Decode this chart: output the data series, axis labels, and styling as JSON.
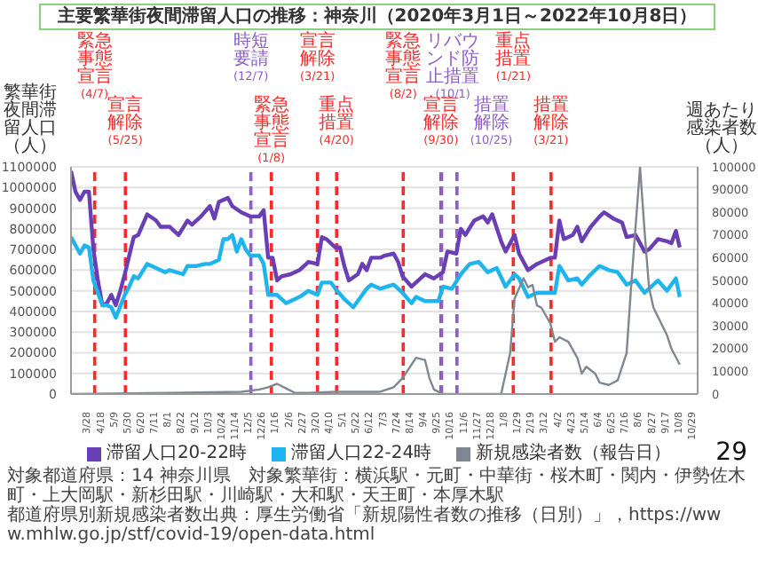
{
  "chart_data": {
    "type": "line",
    "title": "主要繁華街夜間滞留人口の推移：神奈川（2020年3月1日～2022年10月8日）",
    "ylabel": "繁華街夜間滞留人口（人）",
    "y2label": "週あたり感染者数（人）",
    "xlim": [
      "2020-03-01",
      "2022-11-05"
    ],
    "xticks": [
      {
        "value": "2020-03-28",
        "label": "3/28"
      },
      {
        "value": "2020-04-18",
        "label": "4/18"
      },
      {
        "value": "2020-05-09",
        "label": "5/9"
      },
      {
        "value": "2020-05-30",
        "label": "5/30"
      },
      {
        "value": "2020-06-20",
        "label": "6/20"
      },
      {
        "value": "2020-07-11",
        "label": "7/11"
      },
      {
        "value": "2020-08-01",
        "label": "8/1"
      },
      {
        "value": "2020-08-22",
        "label": "8/22"
      },
      {
        "value": "2020-09-12",
        "label": "9/12"
      },
      {
        "value": "2020-10-03",
        "label": "10/3"
      },
      {
        "value": "2020-10-24",
        "label": "10/24"
      },
      {
        "value": "2020-11-14",
        "label": "11/14"
      },
      {
        "value": "2020-12-05",
        "label": "12/5"
      },
      {
        "value": "2020-12-26",
        "label": "12/26"
      },
      {
        "value": "2021-01-16",
        "label": "1/16"
      },
      {
        "value": "2021-02-06",
        "label": "2/6"
      },
      {
        "value": "2021-02-27",
        "label": "2/27"
      },
      {
        "value": "2021-03-20",
        "label": "3/20"
      },
      {
        "value": "2021-04-10",
        "label": "4/10"
      },
      {
        "value": "2021-05-01",
        "label": "5/1"
      },
      {
        "value": "2021-05-22",
        "label": "5/22"
      },
      {
        "value": "2021-06-12",
        "label": "6/12"
      },
      {
        "value": "2021-07-03",
        "label": "7/3"
      },
      {
        "value": "2021-07-24",
        "label": "7/24"
      },
      {
        "value": "2021-08-14",
        "label": "8/14"
      },
      {
        "value": "2021-09-04",
        "label": "9/4"
      },
      {
        "value": "2021-09-25",
        "label": "9/25"
      },
      {
        "value": "2021-10-16",
        "label": "10/16"
      },
      {
        "value": "2021-11-06",
        "label": "11/6"
      },
      {
        "value": "2021-11-27",
        "label": "11/27"
      },
      {
        "value": "2021-12-18",
        "label": "12/18"
      },
      {
        "value": "2022-01-08",
        "label": "1/8"
      },
      {
        "value": "2022-01-29",
        "label": "1/29"
      },
      {
        "value": "2022-02-19",
        "label": "2/19"
      },
      {
        "value": "2022-03-12",
        "label": "3/12"
      },
      {
        "value": "2022-04-02",
        "label": "4/2"
      },
      {
        "value": "2022-04-23",
        "label": "4/23"
      },
      {
        "value": "2022-05-14",
        "label": "5/14"
      },
      {
        "value": "2022-06-04",
        "label": "6/4"
      },
      {
        "value": "2022-06-25",
        "label": "6/25"
      },
      {
        "value": "2022-07-16",
        "label": "7/16"
      },
      {
        "value": "2022-08-06",
        "label": "8/6"
      },
      {
        "value": "2022-08-27",
        "label": "8/27"
      },
      {
        "value": "2022-09-17",
        "label": "9/17"
      },
      {
        "value": "2022-10-08",
        "label": "10/8"
      },
      {
        "value": "2022-10-29",
        "label": "10/29"
      }
    ],
    "ylim": [
      0,
      1100000
    ],
    "yticks": [
      0,
      100000,
      200000,
      300000,
      400000,
      500000,
      600000,
      700000,
      800000,
      900000,
      1000000,
      1100000
    ],
    "y2lim": [
      0,
      100000
    ],
    "y2ticks": [
      0,
      10000,
      20000,
      30000,
      40000,
      50000,
      60000,
      70000,
      80000,
      90000,
      100000
    ],
    "grid": true,
    "legend": "bottom",
    "series": [
      {
        "name": "滞留人口20-22時",
        "color": "#6a3fb6",
        "x": [
          "2020-03-01",
          "2020-03-08",
          "2020-03-15",
          "2020-03-22",
          "2020-03-29",
          "2020-04-05",
          "2020-04-12",
          "2020-04-19",
          "2020-04-26",
          "2020-05-03",
          "2020-05-10",
          "2020-05-17",
          "2020-05-24",
          "2020-06-07",
          "2020-06-14",
          "2020-06-28",
          "2020-07-12",
          "2020-07-19",
          "2020-08-02",
          "2020-08-16",
          "2020-08-30",
          "2020-09-06",
          "2020-09-20",
          "2020-10-04",
          "2020-10-11",
          "2020-10-18",
          "2020-11-01",
          "2020-11-08",
          "2020-11-22",
          "2020-11-29",
          "2020-12-06",
          "2020-12-20",
          "2020-12-27",
          "2021-01-03",
          "2021-01-10",
          "2021-01-17",
          "2021-01-24",
          "2021-02-07",
          "2021-02-21",
          "2021-03-07",
          "2021-03-21",
          "2021-03-28",
          "2021-04-04",
          "2021-04-18",
          "2021-04-25",
          "2021-05-02",
          "2021-05-09",
          "2021-05-23",
          "2021-05-30",
          "2021-06-06",
          "2021-06-13",
          "2021-06-27",
          "2021-07-04",
          "2021-07-18",
          "2021-07-25",
          "2021-08-01",
          "2021-08-15",
          "2021-09-05",
          "2021-09-19",
          "2021-10-03",
          "2021-10-10",
          "2021-10-24",
          "2021-10-31",
          "2021-11-07",
          "2021-11-21",
          "2021-12-05",
          "2021-12-12",
          "2021-12-19",
          "2022-01-02",
          "2022-01-09",
          "2022-01-23",
          "2022-01-30",
          "2022-02-13",
          "2022-02-27",
          "2022-03-20",
          "2022-03-27",
          "2022-04-03",
          "2022-04-10",
          "2022-04-24",
          "2022-05-01",
          "2022-05-08",
          "2022-05-22",
          "2022-06-05",
          "2022-06-12",
          "2022-06-26",
          "2022-07-10",
          "2022-07-17",
          "2022-07-31",
          "2022-08-14",
          "2022-08-21",
          "2022-09-04",
          "2022-09-18",
          "2022-09-25",
          "2022-10-02",
          "2022-10-08"
        ],
        "values": [
          1080000,
          980000,
          940000,
          980000,
          980000,
          700000,
          550000,
          430000,
          440000,
          480000,
          430000,
          500000,
          580000,
          760000,
          770000,
          870000,
          840000,
          810000,
          810000,
          770000,
          840000,
          820000,
          860000,
          910000,
          850000,
          930000,
          950000,
          910000,
          880000,
          870000,
          860000,
          860000,
          890000,
          660000,
          660000,
          550000,
          570000,
          580000,
          600000,
          640000,
          630000,
          760000,
          750000,
          710000,
          710000,
          620000,
          550000,
          580000,
          630000,
          600000,
          660000,
          660000,
          670000,
          680000,
          640000,
          570000,
          520000,
          580000,
          560000,
          590000,
          690000,
          680000,
          800000,
          770000,
          840000,
          860000,
          830000,
          870000,
          740000,
          690000,
          770000,
          680000,
          600000,
          630000,
          660000,
          660000,
          840000,
          750000,
          770000,
          810000,
          740000,
          810000,
          860000,
          880000,
          850000,
          830000,
          760000,
          770000,
          690000,
          700000,
          750000,
          740000,
          730000,
          790000,
          710000
        ]
      },
      {
        "name": "滞留人口22-24時",
        "color": "#1eb4ee",
        "x": [
          "2020-03-01",
          "2020-03-15",
          "2020-03-22",
          "2020-03-29",
          "2020-04-05",
          "2020-04-19",
          "2020-04-26",
          "2020-05-03",
          "2020-05-10",
          "2020-05-24",
          "2020-05-31",
          "2020-06-07",
          "2020-06-14",
          "2020-06-28",
          "2020-07-12",
          "2020-07-26",
          "2020-08-02",
          "2020-08-23",
          "2020-08-30",
          "2020-09-13",
          "2020-09-27",
          "2020-10-04",
          "2020-10-18",
          "2020-10-25",
          "2020-11-01",
          "2020-11-08",
          "2020-11-15",
          "2020-11-22",
          "2020-11-29",
          "2020-12-06",
          "2020-12-20",
          "2020-12-27",
          "2021-01-03",
          "2021-01-17",
          "2021-01-31",
          "2021-02-14",
          "2021-02-21",
          "2021-03-07",
          "2021-03-21",
          "2021-03-28",
          "2021-04-11",
          "2021-04-18",
          "2021-05-02",
          "2021-05-16",
          "2021-05-23",
          "2021-06-06",
          "2021-06-13",
          "2021-06-27",
          "2021-07-18",
          "2021-08-01",
          "2021-08-15",
          "2021-08-22",
          "2021-09-05",
          "2021-09-26",
          "2021-10-03",
          "2021-10-17",
          "2021-10-31",
          "2021-11-14",
          "2021-11-28",
          "2021-12-12",
          "2021-12-26",
          "2022-01-09",
          "2022-01-23",
          "2022-01-30",
          "2022-02-13",
          "2022-02-27",
          "2022-03-20",
          "2022-03-27",
          "2022-04-03",
          "2022-04-17",
          "2022-05-01",
          "2022-05-08",
          "2022-05-22",
          "2022-06-05",
          "2022-06-19",
          "2022-07-03",
          "2022-07-17",
          "2022-07-31",
          "2022-08-14",
          "2022-09-04",
          "2022-09-18",
          "2022-10-02",
          "2022-10-08"
        ],
        "values": [
          760000,
          680000,
          720000,
          710000,
          550000,
          430000,
          430000,
          420000,
          370000,
          480000,
          520000,
          570000,
          560000,
          630000,
          610000,
          590000,
          600000,
          580000,
          620000,
          620000,
          630000,
          630000,
          650000,
          750000,
          750000,
          770000,
          690000,
          750000,
          700000,
          670000,
          670000,
          630000,
          480000,
          480000,
          440000,
          460000,
          470000,
          500000,
          480000,
          540000,
          540000,
          510000,
          460000,
          420000,
          450000,
          510000,
          530000,
          510000,
          530000,
          490000,
          440000,
          470000,
          450000,
          450000,
          520000,
          510000,
          580000,
          630000,
          640000,
          590000,
          610000,
          520000,
          580000,
          560000,
          470000,
          490000,
          490000,
          490000,
          620000,
          550000,
          560000,
          530000,
          580000,
          620000,
          600000,
          590000,
          530000,
          550000,
          490000,
          550000,
          500000,
          560000,
          470000
        ]
      },
      {
        "name": "新規感染者数（報告日）",
        "color": "#7f8892",
        "axis": "y2",
        "x": [
          "2020-03-01",
          "2020-08-02",
          "2020-11-22",
          "2020-12-20",
          "2021-01-03",
          "2021-01-17",
          "2021-01-31",
          "2021-02-14",
          "2021-03-07",
          "2021-04-18",
          "2021-05-23",
          "2021-06-27",
          "2021-07-18",
          "2021-08-01",
          "2021-08-15",
          "2021-08-22",
          "2021-09-05",
          "2021-09-12",
          "2021-09-19",
          "2021-10-03",
          "2022-01-02",
          "2022-01-16",
          "2022-01-23",
          "2022-02-06",
          "2022-02-13",
          "2022-02-20",
          "2022-02-27",
          "2022-03-06",
          "2022-03-20",
          "2022-03-27",
          "2022-04-03",
          "2022-04-17",
          "2022-05-01",
          "2022-05-08",
          "2022-05-15",
          "2022-05-29",
          "2022-06-05",
          "2022-06-19",
          "2022-07-03",
          "2022-07-17",
          "2022-07-24",
          "2022-08-07",
          "2022-08-14",
          "2022-08-21",
          "2022-08-28",
          "2022-09-04",
          "2022-09-18",
          "2022-09-25",
          "2022-10-08"
        ],
        "values": [
          0,
          500,
          1000,
          2000,
          3000,
          4500,
          2500,
          500,
          500,
          1000,
          1000,
          1000,
          3000,
          7000,
          13000,
          16000,
          15000,
          7000,
          2000,
          0,
          0,
          18000,
          42000,
          51000,
          47000,
          48000,
          39000,
          38000,
          31000,
          23000,
          25000,
          23000,
          16000,
          9000,
          12000,
          9000,
          5000,
          4000,
          6000,
          18000,
          47000,
          100000,
          72000,
          47000,
          38000,
          34000,
          26000,
          20000,
          13000
        ]
      }
    ],
    "ref_lines": [
      {
        "axis": "x",
        "value": "2020-04-07",
        "label": "緊急事態宣言(4/7)",
        "color": "#ff2a2a",
        "line_style": "dashed"
      },
      {
        "axis": "x",
        "value": "2020-05-25",
        "label": "宣言解除(5/25)",
        "color": "#ff2a2a",
        "line_style": "dashed"
      },
      {
        "axis": "x",
        "value": "2020-12-07",
        "label": "時短要請(12/7)",
        "color": "#8f5fc9",
        "line_style": "dashed"
      },
      {
        "axis": "x",
        "value": "2021-01-08",
        "label": "緊急事態宣言(1/8)",
        "color": "#ff2a2a",
        "line_style": "dashed"
      },
      {
        "axis": "x",
        "value": "2021-03-21",
        "label": "宣言解除(3/21)",
        "color": "#ff2a2a",
        "line_style": "dashed"
      },
      {
        "axis": "x",
        "value": "2021-04-20",
        "label": "重点措置(4/20)",
        "color": "#ff2a2a",
        "line_style": "dashed"
      },
      {
        "axis": "x",
        "value": "2021-08-02",
        "label": "緊急事態宣言(8/2)",
        "color": "#ff2a2a",
        "line_style": "dashed"
      },
      {
        "axis": "x",
        "value": "2021-09-30",
        "label": "宣言解除(9/30)",
        "color": "#ff2a2a",
        "line_style": "dashed"
      },
      {
        "axis": "x",
        "value": "2021-10-01",
        "label": "リバウンド防止措置(10/1)",
        "color": "#8f5fc9",
        "line_style": "dashed"
      },
      {
        "axis": "x",
        "value": "2021-10-25",
        "label": "措置解除(10/25)",
        "color": "#8f5fc9",
        "line_style": "dashed"
      },
      {
        "axis": "x",
        "value": "2022-01-21",
        "label": "重点措置(1/21)",
        "color": "#ff2a2a",
        "line_style": "dashed"
      },
      {
        "axis": "x",
        "value": "2022-03-21",
        "label": "措置解除(3/21)",
        "color": "#ff2a2a",
        "line_style": "dashed"
      }
    ],
    "annotations": [
      "対象都道府県：14 神奈川県",
      "対象繁華街：横浜駅・元町・中華街・桜木町・関内・伊勢佐木町・上大岡駅・新杉田駅・川崎駅・大和駅・天王町・本厚木駅",
      "都道府県別新規感染者数出典：厚生労働省「新規陽性者数の推移（日別）」，https://www.mhlw.go.jp/stf/covid-19/open-data.html",
      "29"
    ]
  }
}
